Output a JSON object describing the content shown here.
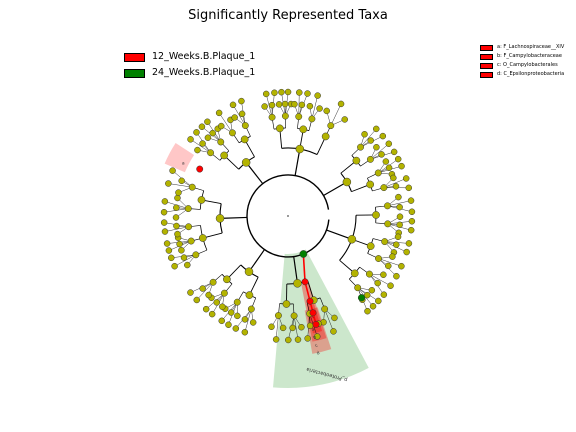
{
  "title": "Significantly Represented Taxa",
  "legend_main": [
    {
      "label": "12_Weeks.B.Plaque_1",
      "color": "#ff0000"
    },
    {
      "label": "24_Weeks.B.Plaque_1",
      "color": "#008000"
    }
  ],
  "legend_biomarkers": [
    {
      "label": "a: F_Lachnospiraceae__XIV",
      "color": "#ff0000"
    },
    {
      "label": "b: F_Campylobacteraceae",
      "color": "#ff0000"
    },
    {
      "label": "c: O_Campylobacterales",
      "color": "#ff0000"
    },
    {
      "label": "d: C_Epsilonproteobacteria",
      "color": "#ff0000"
    }
  ],
  "clade_letters": [
    "a",
    "b",
    "c",
    "d"
  ],
  "clade_label": "p_Proteobacteria",
  "colors": {
    "node": "#b3b300",
    "node_outline": "#333333",
    "class_12": "#ff0000",
    "class_24": "#008000",
    "shade_12": "#ff9999",
    "shade_24": "#8fc98f",
    "edge": "#000000"
  }
}
